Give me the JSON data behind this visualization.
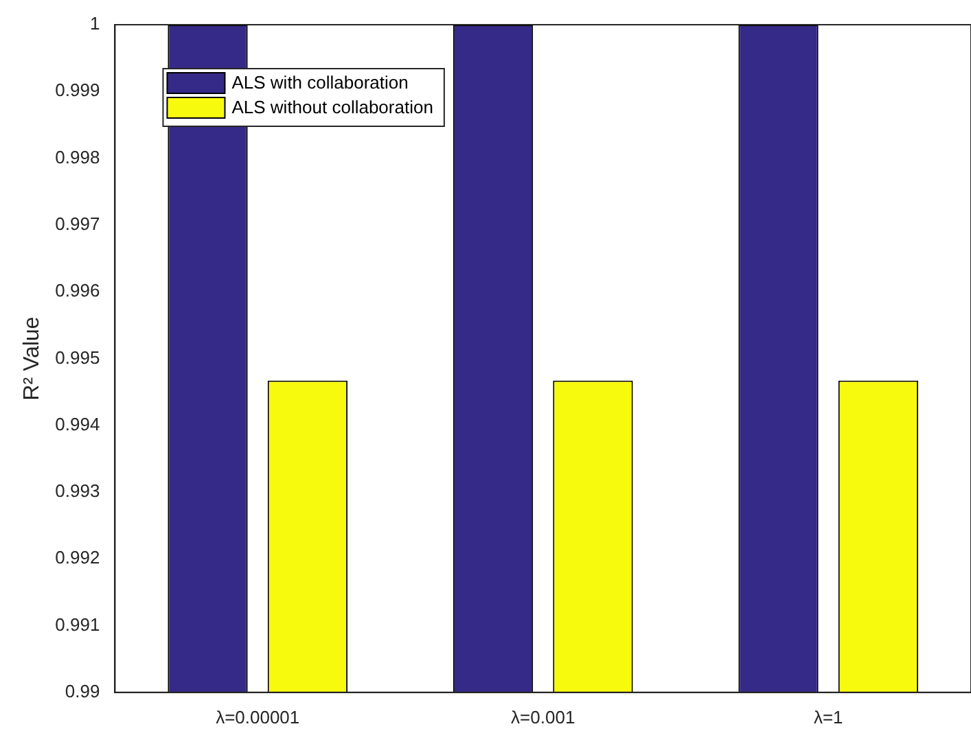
{
  "chart_data": {
    "type": "bar",
    "ylabel": "R² Value",
    "categories": [
      "λ=0.00001",
      "λ=0.001",
      "λ=1"
    ],
    "series": [
      {
        "name": "ALS with collaboration",
        "color": "#352a87",
        "values": [
          1,
          1,
          1
        ]
      },
      {
        "name": "ALS without collaboration",
        "color": "#f8fa0d",
        "values": [
          0.99467,
          0.99467,
          0.99467
        ]
      }
    ],
    "ylim": [
      0.99,
      1
    ],
    "yticks": [
      0.99,
      0.991,
      0.992,
      0.993,
      0.994,
      0.995,
      0.996,
      0.997,
      0.998,
      0.999,
      1
    ],
    "grid": false,
    "legend": "top left"
  }
}
